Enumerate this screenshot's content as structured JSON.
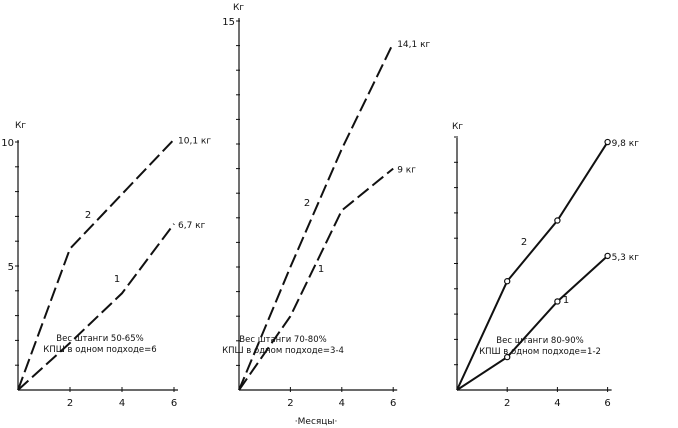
{
  "chart_data": [
    {
      "type": "line",
      "ylabel": "Кг",
      "x_ticks": [
        "2",
        "4",
        "6"
      ],
      "y_ticks": [
        "5",
        "10"
      ],
      "xlim": [
        0,
        6
      ],
      "ylim": [
        0,
        10
      ],
      "grid": false,
      "series": [
        {
          "name": "1",
          "dash": "long",
          "markers": false,
          "end_label": "6,7 кг",
          "x": [
            0,
            2,
            4,
            6
          ],
          "y": [
            0,
            1.9,
            3.9,
            6.7
          ]
        },
        {
          "name": "2",
          "dash": "long",
          "markers": false,
          "end_label": "10,1 кг",
          "x": [
            0,
            2,
            4,
            6
          ],
          "y": [
            0,
            5.7,
            7.9,
            10.1
          ]
        }
      ],
      "annotation": [
        "Вес штанги 50-65%",
        "КПШ в одном подходе=6"
      ]
    },
    {
      "type": "line",
      "ylabel": "Кг",
      "xlabel": "Месяцы",
      "x_ticks": [
        "2",
        "4",
        "6"
      ],
      "y_ticks": [
        "15"
      ],
      "xlim": [
        0,
        6
      ],
      "ylim": [
        0,
        15
      ],
      "grid": false,
      "series": [
        {
          "name": "1",
          "dash": "long",
          "markers": false,
          "end_label": "9 кг",
          "x": [
            0,
            2,
            4,
            6
          ],
          "y": [
            0,
            3.0,
            7.3,
            9.0
          ]
        },
        {
          "name": "2",
          "dash": "long",
          "markers": false,
          "end_label": "14,1 кг",
          "x": [
            0,
            2,
            4,
            6
          ],
          "y": [
            0,
            5.0,
            9.8,
            14.1
          ]
        }
      ],
      "annotation": [
        "Вес штанги 70-80%",
        "КПШ в одном подходе=3-4"
      ]
    },
    {
      "type": "line",
      "ylabel": "Кг",
      "x_ticks": [
        "2",
        "4",
        "6"
      ],
      "y_ticks": [],
      "xlim": [
        0,
        6
      ],
      "ylim": [
        0,
        10
      ],
      "grid": false,
      "series": [
        {
          "name": "1",
          "dash": "solid",
          "markers": true,
          "end_label": "5,3 кг",
          "x": [
            0,
            2,
            4,
            6
          ],
          "y": [
            0,
            1.3,
            3.5,
            5.3
          ]
        },
        {
          "name": "2",
          "dash": "solid",
          "markers": true,
          "end_label": "9,8 кг",
          "x": [
            0,
            2,
            4,
            6
          ],
          "y": [
            0,
            4.3,
            6.7,
            9.8
          ]
        }
      ],
      "annotation": [
        "Вес штанги 80-90%",
        "КПШ в одном подходе=1-2"
      ]
    }
  ]
}
